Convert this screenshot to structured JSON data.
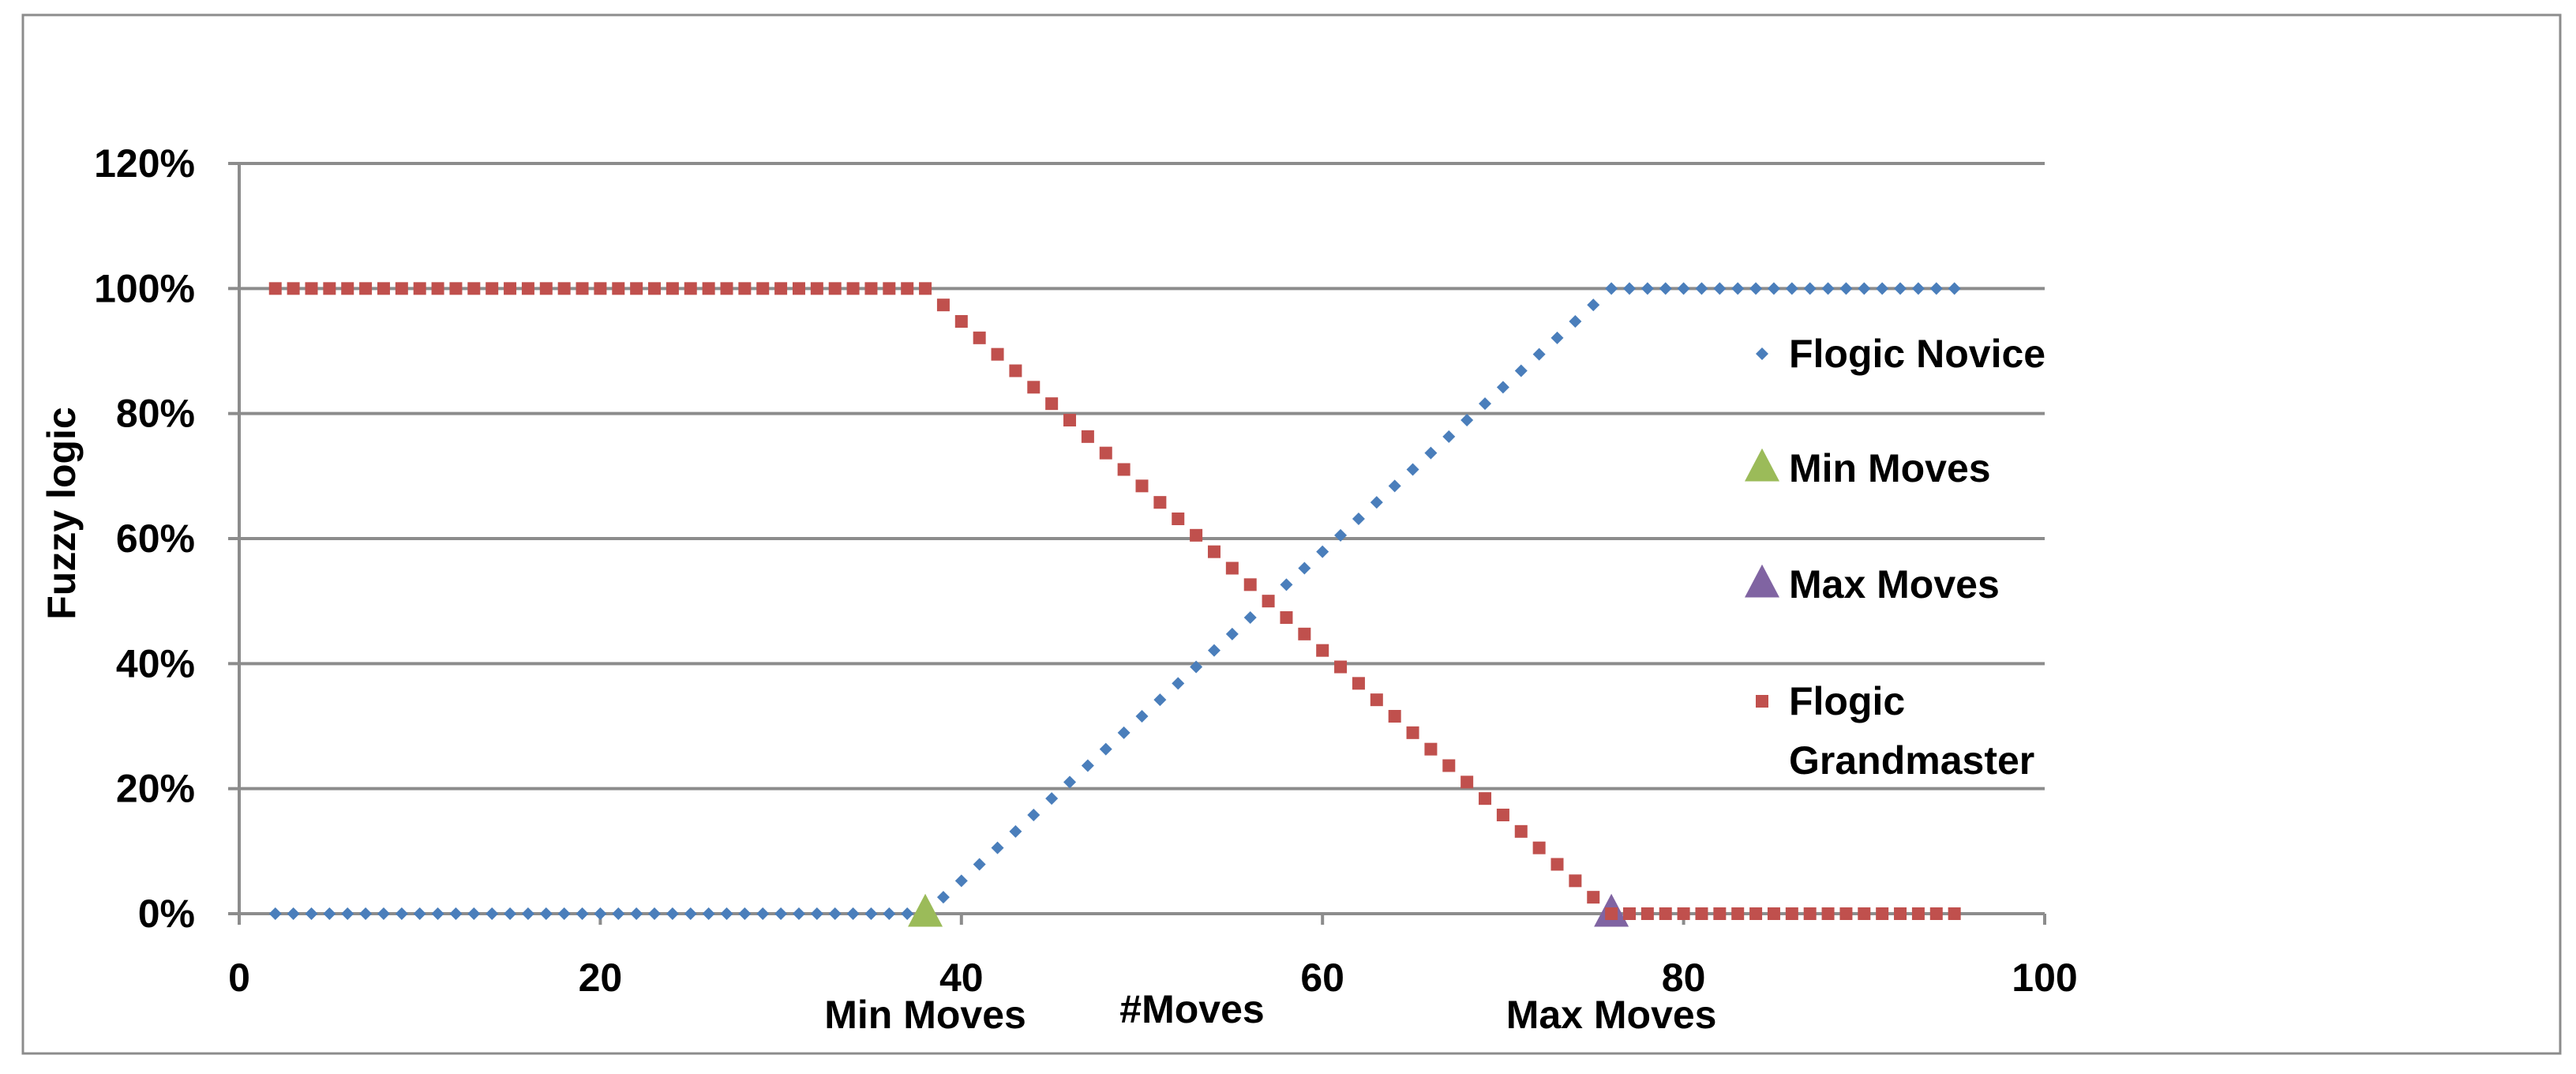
{
  "chart_data": {
    "type": "scatter",
    "title": "",
    "xlabel": "#Moves",
    "ylabel": "Fuzzy logic",
    "xlim": [
      0,
      100
    ],
    "ylim": [
      0,
      1.2
    ],
    "grid": "horizontal",
    "legend_placement": "right",
    "x_ticks": [
      {
        "value": 0,
        "label": "0"
      },
      {
        "value": 20,
        "label": "20"
      },
      {
        "value": 40,
        "label": "40"
      },
      {
        "value": 60,
        "label": "60"
      },
      {
        "value": 80,
        "label": "80"
      },
      {
        "value": 100,
        "label": "100"
      }
    ],
    "y_ticks": [
      {
        "value": 0,
        "label": "0%"
      },
      {
        "value": 0.2,
        "label": "20%"
      },
      {
        "value": 0.4,
        "label": "40%"
      },
      {
        "value": 0.6,
        "label": "60%"
      },
      {
        "value": 0.8,
        "label": "80%"
      },
      {
        "value": 1.0,
        "label": "100%"
      },
      {
        "value": 1.2,
        "label": "120%"
      }
    ],
    "annotations": [
      {
        "text": "Min Moves",
        "x": 38
      },
      {
        "text": "Max Moves",
        "x": 76
      }
    ],
    "series": [
      {
        "name": "Flogic Novice",
        "marker": "diamond",
        "color": "#4a7ebb",
        "x_start": 2,
        "x_end": 95,
        "x_step": 1,
        "rule": "0 for x<=38; (x-38)/38 for 38<x<76; 1 for x>=76"
      },
      {
        "name": "Min Moves",
        "marker": "triangle",
        "color": "#9bbb59",
        "points": [
          {
            "x": 38,
            "y": 0
          }
        ]
      },
      {
        "name": "Max Moves",
        "marker": "triangle",
        "color": "#8064a2",
        "points": [
          {
            "x": 76,
            "y": 0
          }
        ]
      },
      {
        "name": "Flogic Grandmaster",
        "legend_lines": [
          "Flogic",
          "Grandmaster"
        ],
        "marker": "square",
        "color": "#c0504d",
        "x_start": 2,
        "x_end": 95,
        "x_step": 1,
        "rule": "1 for x<=38; (76-x)/38 for 38<x<76; 0 for x>=76"
      }
    ]
  }
}
